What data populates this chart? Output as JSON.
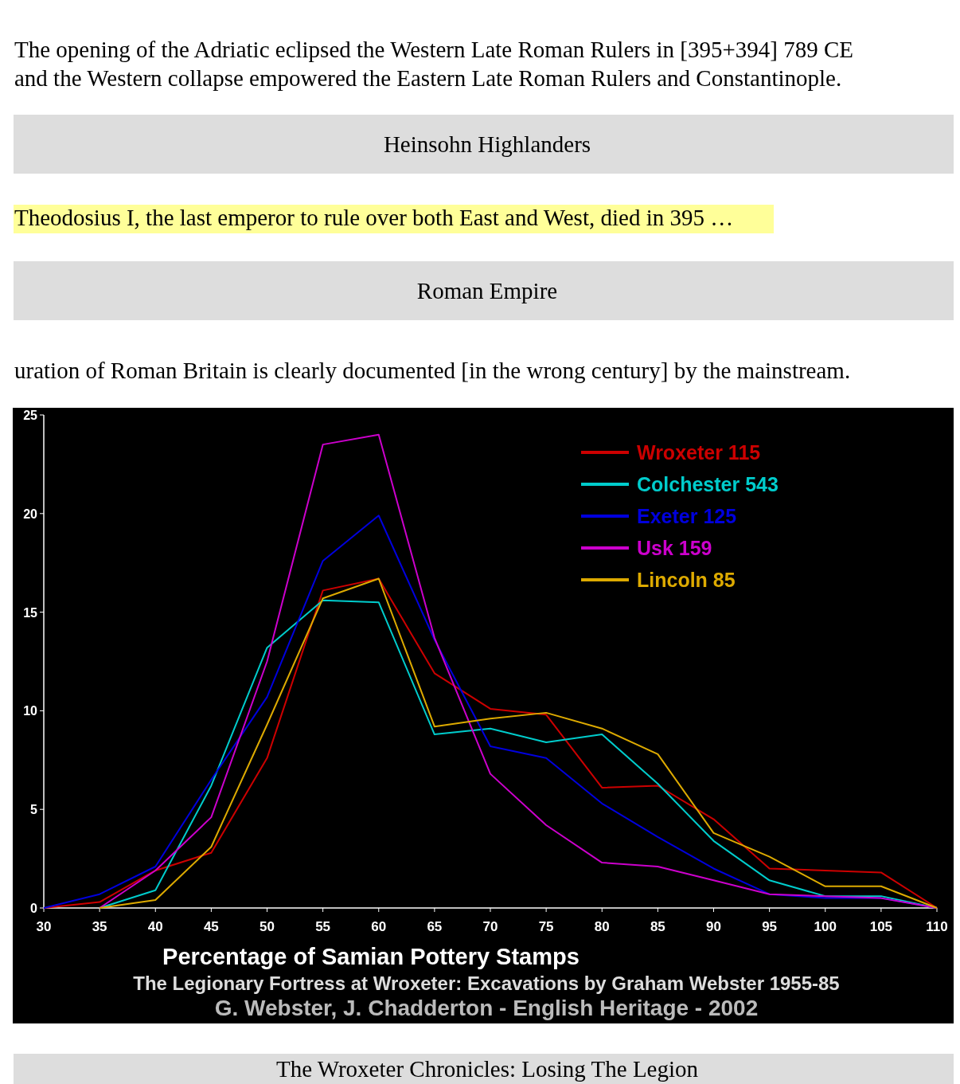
{
  "chart_data": {
    "type": "line",
    "title": "The Legionary Fortress at Wroxeter: Excavations by Graham Webster 1955-85",
    "subtitle": "G. Webster, J. Chadderton - English Heritage - 2002",
    "xlabel": "Percentage of Samian Pottery Stamps",
    "annotations": [
      "The opening of the Adriatic eclipsed the Western Late Roman Rulers in [395+394] 789 CE",
      "and the Western collapse empowered the Eastern Late Roman Rulers and Constantinople.",
      "Heinsohn Highlanders",
      "Theodosius I, the last emperor to rule over both East and West, died in 395 …",
      "Roman Empire",
      "uration of Roman Britain is clearly documented [in the wrong century] by the mainstream.",
      "The Wroxeter Chronicles: Losing The Legion"
    ],
    "x": [
      30,
      35,
      40,
      45,
      50,
      55,
      60,
      65,
      70,
      75,
      80,
      85,
      90,
      95,
      100,
      105,
      110
    ],
    "series": [
      {
        "name": "Wroxeter 115",
        "color": "#cc0000",
        "values": [
          0,
          0.3,
          1.9,
          2.8,
          7.6,
          16.1,
          16.7,
          11.9,
          10.1,
          9.8,
          6.1,
          6.2,
          4.5,
          2.0,
          1.9,
          1.8,
          0
        ]
      },
      {
        "name": "Colchester 543",
        "color": "#00cccc",
        "values": [
          null,
          0,
          0.9,
          6.2,
          13.2,
          15.6,
          15.5,
          8.8,
          9.1,
          8.4,
          8.8,
          6.3,
          3.4,
          1.4,
          0.6,
          0.6,
          0
        ]
      },
      {
        "name": "Exeter 125",
        "color": "#0000dd",
        "values": [
          0,
          0.7,
          2.1,
          6.5,
          10.7,
          17.6,
          19.9,
          13.6,
          8.2,
          7.6,
          5.3,
          3.6,
          2.0,
          0.7,
          0.5,
          0.5,
          0
        ]
      },
      {
        "name": "Usk 159",
        "color": "#cc00cc",
        "values": [
          null,
          0,
          1.9,
          4.6,
          12.5,
          23.5,
          24.0,
          13.7,
          6.8,
          4.2,
          2.3,
          2.1,
          1.4,
          0.7,
          0.6,
          0.5,
          0
        ]
      },
      {
        "name": "Lincoln 85",
        "color": "#ddaa00",
        "values": [
          null,
          0,
          0.4,
          3.1,
          9.3,
          15.7,
          16.7,
          9.2,
          9.6,
          9.9,
          9.1,
          7.8,
          3.8,
          2.6,
          1.1,
          1.1,
          0
        ]
      }
    ],
    "xlim": [
      30,
      110
    ],
    "xticks": [
      30,
      35,
      40,
      45,
      50,
      55,
      60,
      65,
      70,
      75,
      80,
      85,
      90,
      95,
      100,
      105,
      110
    ],
    "ylim": [
      0,
      25
    ],
    "yticks": [
      0,
      5,
      10,
      15,
      20,
      25
    ],
    "legend": "top right",
    "grid": false,
    "line_style": "solid"
  }
}
